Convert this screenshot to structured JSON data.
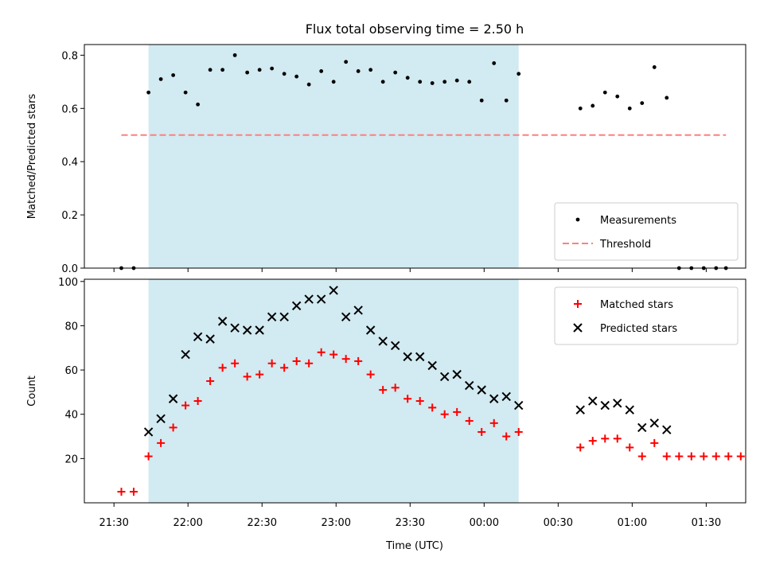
{
  "chart_data": {
    "title": "Flux total observing time = 2.50 h",
    "xlabel": "Time (UTC)",
    "x_tick_labels": [
      "21:30",
      "22:00",
      "22:30",
      "23:00",
      "23:30",
      "00:00",
      "00:30",
      "01:00",
      "01:30"
    ],
    "x_tick_minutes": [
      0,
      30,
      60,
      90,
      120,
      150,
      180,
      210,
      240
    ],
    "xlim_minutes": [
      -12,
      256
    ],
    "x_unit_note": "minutes after 21:30 UTC",
    "shaded_interval": [
      14,
      164
    ],
    "colors": {
      "shade": "#add8e6",
      "threshold": "#ff7f7f",
      "matched": "#ff0000",
      "predicted": "#000000",
      "measurement": "#000000"
    },
    "panels": [
      {
        "type": "scatter",
        "ylabel": "Matched/Predicted stars",
        "ylim": [
          0,
          0.84
        ],
        "y_ticks": [
          0.0,
          0.2,
          0.4,
          0.6,
          0.8
        ],
        "y_tick_labels": [
          "0.0",
          "0.2",
          "0.4",
          "0.6",
          "0.8"
        ],
        "legend_position": "lower-right",
        "threshold": {
          "name": "Threshold",
          "value": 0.5,
          "x_range": [
            3,
            248
          ]
        },
        "series": [
          {
            "name": "Measurements",
            "marker": "dot",
            "x": [
              3,
              8,
              14,
              19,
              24,
              29,
              34,
              39,
              44,
              49,
              54,
              59,
              64,
              69,
              74,
              79,
              84,
              89,
              94,
              99,
              104,
              109,
              114,
              119,
              124,
              129,
              134,
              139,
              144,
              149,
              154,
              159,
              164,
              189,
              194,
              199,
              204,
              209,
              214,
              219,
              224,
              229,
              234,
              239,
              244,
              248
            ],
            "y": [
              0,
              0,
              0.66,
              0.71,
              0.725,
              0.66,
              0.615,
              0.745,
              0.745,
              0.8,
              0.735,
              0.745,
              0.75,
              0.73,
              0.72,
              0.69,
              0.74,
              0.7,
              0.775,
              0.74,
              0.745,
              0.7,
              0.735,
              0.715,
              0.7,
              0.695,
              0.7,
              0.705,
              0.7,
              0.63,
              0.77,
              0.63,
              0.73,
              0.6,
              0.61,
              0.66,
              0.645,
              0.6,
              0.62,
              0.755,
              0.64,
              0,
              0,
              0,
              0,
              0
            ]
          }
        ]
      },
      {
        "type": "scatter",
        "ylabel": "Count",
        "ylim": [
          0,
          101
        ],
        "y_ticks": [
          20,
          40,
          60,
          80,
          100
        ],
        "y_tick_labels": [
          "20",
          "40",
          "60",
          "80",
          "100"
        ],
        "legend_position": "upper-right",
        "series": [
          {
            "name": "Matched stars",
            "marker": "plus",
            "x": [
              3,
              8,
              14,
              19,
              24,
              29,
              34,
              39,
              44,
              49,
              54,
              59,
              64,
              69,
              74,
              79,
              84,
              89,
              94,
              99,
              104,
              109,
              114,
              119,
              124,
              129,
              134,
              139,
              144,
              149,
              154,
              159,
              164,
              189,
              194,
              199,
              204,
              209,
              214,
              219,
              224,
              229,
              234,
              239,
              244,
              249,
              254
            ],
            "y": [
              5,
              5,
              21,
              27,
              34,
              44,
              46,
              55,
              61,
              63,
              57,
              58,
              63,
              61,
              64,
              63,
              68,
              67,
              65,
              64,
              58,
              51,
              52,
              47,
              46,
              43,
              40,
              41,
              37,
              32,
              36,
              30,
              32,
              25,
              28,
              29,
              29,
              25,
              21,
              27,
              21,
              21,
              21,
              21,
              21,
              21,
              21
            ]
          },
          {
            "name": "Predicted stars",
            "marker": "x",
            "x": [
              14,
              19,
              24,
              29,
              34,
              39,
              44,
              49,
              54,
              59,
              64,
              69,
              74,
              79,
              84,
              89,
              94,
              99,
              104,
              109,
              114,
              119,
              124,
              129,
              134,
              139,
              144,
              149,
              154,
              159,
              164,
              189,
              194,
              199,
              204,
              209,
              214,
              219,
              224
            ],
            "y": [
              32,
              38,
              47,
              67,
              75,
              74,
              82,
              79,
              78,
              78,
              84,
              84,
              89,
              92,
              92,
              96,
              84,
              87,
              78,
              73,
              71,
              66,
              66,
              62,
              57,
              58,
              53,
              51,
              47,
              48,
              44,
              42,
              46,
              44,
              45,
              42,
              34,
              36,
              33
            ]
          }
        ]
      }
    ]
  }
}
